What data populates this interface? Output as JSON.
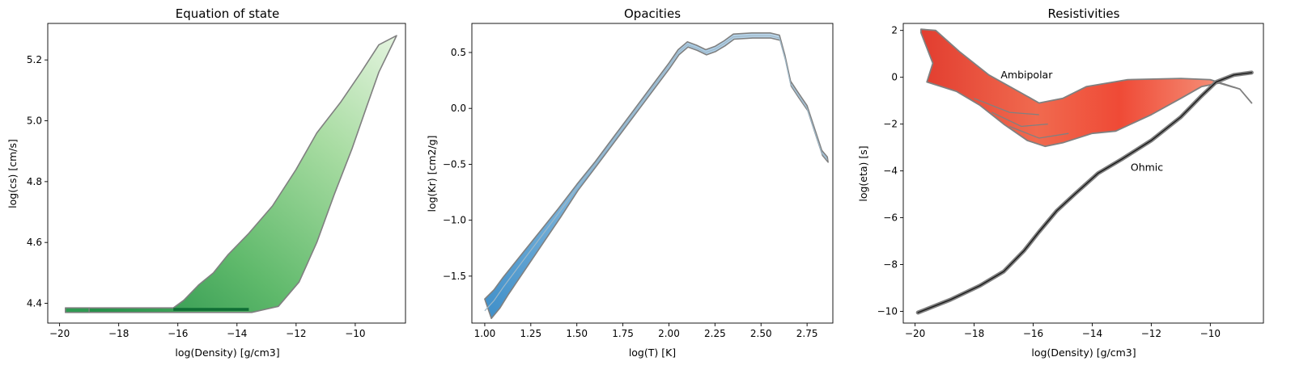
{
  "chart_data": [
    {
      "type": "heatmap",
      "title": "Equation of state",
      "xlabel": "log(Density) [g/cm3]",
      "ylabel": "log(cs) [cm/s]",
      "xlim": [
        -20.4,
        -8.3
      ],
      "ylim": [
        4.335,
        5.32
      ],
      "xticks": [
        -20,
        -18,
        -16,
        -14,
        -12,
        -10
      ],
      "yticks": [
        4.4,
        4.6,
        4.8,
        5.0,
        5.2
      ],
      "colormap": "Greens",
      "outline_color": "#808080",
      "upper_edge": [
        [
          -19.8,
          4.385
        ],
        [
          -16.15,
          4.385
        ],
        [
          -15.8,
          4.41
        ],
        [
          -15.3,
          4.46
        ],
        [
          -14.8,
          4.5
        ],
        [
          -14.3,
          4.56
        ],
        [
          -13.6,
          4.63
        ],
        [
          -12.8,
          4.72
        ],
        [
          -12.0,
          4.84
        ],
        [
          -11.3,
          4.96
        ],
        [
          -10.5,
          5.06
        ],
        [
          -9.8,
          5.16
        ],
        [
          -9.2,
          5.25
        ],
        [
          -8.6,
          5.28
        ]
      ],
      "lower_edge": [
        [
          -19.8,
          4.37
        ],
        [
          -16.15,
          4.37
        ],
        [
          -13.5,
          4.37
        ],
        [
          -12.6,
          4.39
        ],
        [
          -11.9,
          4.47
        ],
        [
          -11.3,
          4.6
        ],
        [
          -10.7,
          4.76
        ],
        [
          -10.1,
          4.91
        ],
        [
          -9.6,
          5.05
        ],
        [
          -9.2,
          5.16
        ],
        [
          -8.7,
          5.26
        ]
      ]
    },
    {
      "type": "heatmap",
      "title": "Opacities",
      "xlabel": "log(T) [K]",
      "ylabel": "log(Kr) [cm2/g]",
      "xlim": [
        0.93,
        2.89
      ],
      "ylim": [
        -1.92,
        0.76
      ],
      "xticks": [
        1.0,
        1.25,
        1.5,
        1.75,
        2.0,
        2.25,
        2.5,
        2.75
      ],
      "xticklabels": [
        "1.00",
        "1.25",
        "1.50",
        "1.75",
        "2.00",
        "2.25",
        "2.50",
        "2.75"
      ],
      "yticks": [
        -1.5,
        -1.0,
        -0.5,
        0.0,
        0.5
      ],
      "colormap": "Blues",
      "outline_color": "#808080",
      "curve": [
        [
          1.0,
          -1.81
        ],
        [
          1.05,
          -1.72
        ],
        [
          1.1,
          -1.6
        ],
        [
          1.2,
          -1.38
        ],
        [
          1.3,
          -1.16
        ],
        [
          1.4,
          -0.94
        ],
        [
          1.5,
          -0.71
        ],
        [
          1.6,
          -0.5
        ],
        [
          1.7,
          -0.28
        ],
        [
          1.8,
          -0.06
        ],
        [
          1.9,
          0.16
        ],
        [
          2.0,
          0.38
        ],
        [
          2.05,
          0.5
        ],
        [
          2.1,
          0.57
        ],
        [
          2.15,
          0.54
        ],
        [
          2.2,
          0.5
        ],
        [
          2.25,
          0.53
        ],
        [
          2.3,
          0.58
        ],
        [
          2.35,
          0.64
        ],
        [
          2.45,
          0.65
        ],
        [
          2.55,
          0.65
        ],
        [
          2.6,
          0.63
        ],
        [
          2.63,
          0.45
        ],
        [
          2.66,
          0.22
        ],
        [
          2.7,
          0.12
        ],
        [
          2.75,
          0.0
        ],
        [
          2.8,
          -0.25
        ],
        [
          2.83,
          -0.4
        ],
        [
          2.86,
          -0.46
        ]
      ],
      "spread_low_end": 0.09
    },
    {
      "type": "heatmap",
      "title": "Resistivities",
      "xlabel": "log(Density) [g/cm3]",
      "ylabel": "log(eta) [s]",
      "xlim": [
        -20.4,
        -8.2
      ],
      "ylim": [
        -10.5,
        2.3
      ],
      "xticks": [
        -20,
        -18,
        -16,
        -14,
        -12,
        -10
      ],
      "yticks": [
        -10,
        -8,
        -6,
        -4,
        -2,
        0,
        2
      ],
      "colormap": "Reds",
      "outline_color": "#808080",
      "annotations": [
        {
          "text": "Ambipolar",
          "x": -17.1,
          "y": -0.05
        },
        {
          "text": "Ohmic",
          "x": -12.7,
          "y": -4.0
        }
      ],
      "ambipolar_upper": [
        [
          -19.8,
          2.05
        ],
        [
          -19.3,
          2.0
        ],
        [
          -18.5,
          1.1
        ],
        [
          -17.5,
          0.1
        ],
        [
          -16.5,
          -0.6
        ],
        [
          -15.8,
          -1.1
        ],
        [
          -15.0,
          -0.9
        ],
        [
          -14.2,
          -0.4
        ],
        [
          -12.8,
          -0.1
        ],
        [
          -11.0,
          -0.05
        ],
        [
          -10.0,
          -0.1
        ],
        [
          -9.0,
          -0.5
        ],
        [
          -8.6,
          -1.1
        ]
      ],
      "ambipolar_lower": [
        [
          -19.8,
          1.9
        ],
        [
          -19.4,
          0.6
        ],
        [
          -19.6,
          -0.2
        ],
        [
          -18.6,
          -0.6
        ],
        [
          -17.8,
          -1.2
        ],
        [
          -17.0,
          -2.0
        ],
        [
          -16.2,
          -2.7
        ],
        [
          -15.6,
          -2.95
        ],
        [
          -15.0,
          -2.8
        ],
        [
          -14.0,
          -2.4
        ],
        [
          -13.2,
          -2.3
        ],
        [
          -12.0,
          -1.6
        ],
        [
          -11.0,
          -0.9
        ],
        [
          -10.3,
          -0.4
        ],
        [
          -9.7,
          -0.25
        ],
        [
          -9.0,
          -0.5
        ],
        [
          -8.6,
          -1.1
        ]
      ],
      "ohmic": [
        [
          -19.9,
          -10.05
        ],
        [
          -18.8,
          -9.5
        ],
        [
          -17.8,
          -8.9
        ],
        [
          -17.0,
          -8.3
        ],
        [
          -16.3,
          -7.4
        ],
        [
          -15.8,
          -6.6
        ],
        [
          -15.2,
          -5.7
        ],
        [
          -14.6,
          -5.0
        ],
        [
          -13.8,
          -4.1
        ],
        [
          -13.0,
          -3.5
        ],
        [
          -12.0,
          -2.7
        ],
        [
          -11.0,
          -1.7
        ],
        [
          -10.3,
          -0.8
        ],
        [
          -9.8,
          -0.2
        ],
        [
          -9.2,
          0.1
        ],
        [
          -8.6,
          0.2
        ]
      ]
    }
  ]
}
